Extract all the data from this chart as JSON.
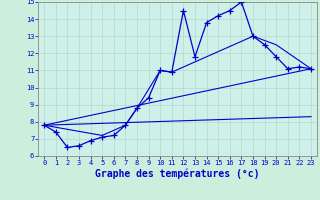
{
  "background_color": "#cceedd",
  "plot_bg": "#cff0e8",
  "line_color": "#0000cc",
  "xlabel": "Graphe des températures (°c)",
  "xlabel_fontsize": 7,
  "xlim": [
    -0.5,
    23.5
  ],
  "ylim": [
    6,
    15
  ],
  "xticks": [
    0,
    1,
    2,
    3,
    4,
    5,
    6,
    7,
    8,
    9,
    10,
    11,
    12,
    13,
    14,
    15,
    16,
    17,
    18,
    19,
    20,
    21,
    22,
    23
  ],
  "yticks": [
    6,
    7,
    8,
    9,
    10,
    11,
    12,
    13,
    14,
    15
  ],
  "series": {
    "main": {
      "x": [
        0,
        1,
        2,
        3,
        4,
        5,
        6,
        7,
        8,
        9,
        10,
        11,
        12,
        13,
        14,
        15,
        16,
        17,
        18,
        19,
        20,
        21,
        22,
        23
      ],
      "y": [
        7.8,
        7.4,
        6.5,
        6.6,
        6.9,
        7.1,
        7.2,
        7.8,
        8.8,
        9.4,
        11.0,
        10.9,
        14.5,
        11.8,
        13.8,
        14.2,
        14.5,
        15.0,
        13.0,
        12.5,
        11.8,
        11.1,
        11.2,
        11.1
      ]
    },
    "smooth1": {
      "x": [
        0,
        5,
        7,
        8,
        10,
        11,
        18,
        20,
        23
      ],
      "y": [
        7.8,
        7.2,
        7.8,
        8.8,
        11.0,
        10.9,
        13.0,
        12.5,
        11.1
      ]
    },
    "line_low": {
      "x": [
        0,
        23
      ],
      "y": [
        7.8,
        8.3
      ]
    },
    "line_mid": {
      "x": [
        0,
        23
      ],
      "y": [
        7.8,
        11.1
      ]
    }
  }
}
